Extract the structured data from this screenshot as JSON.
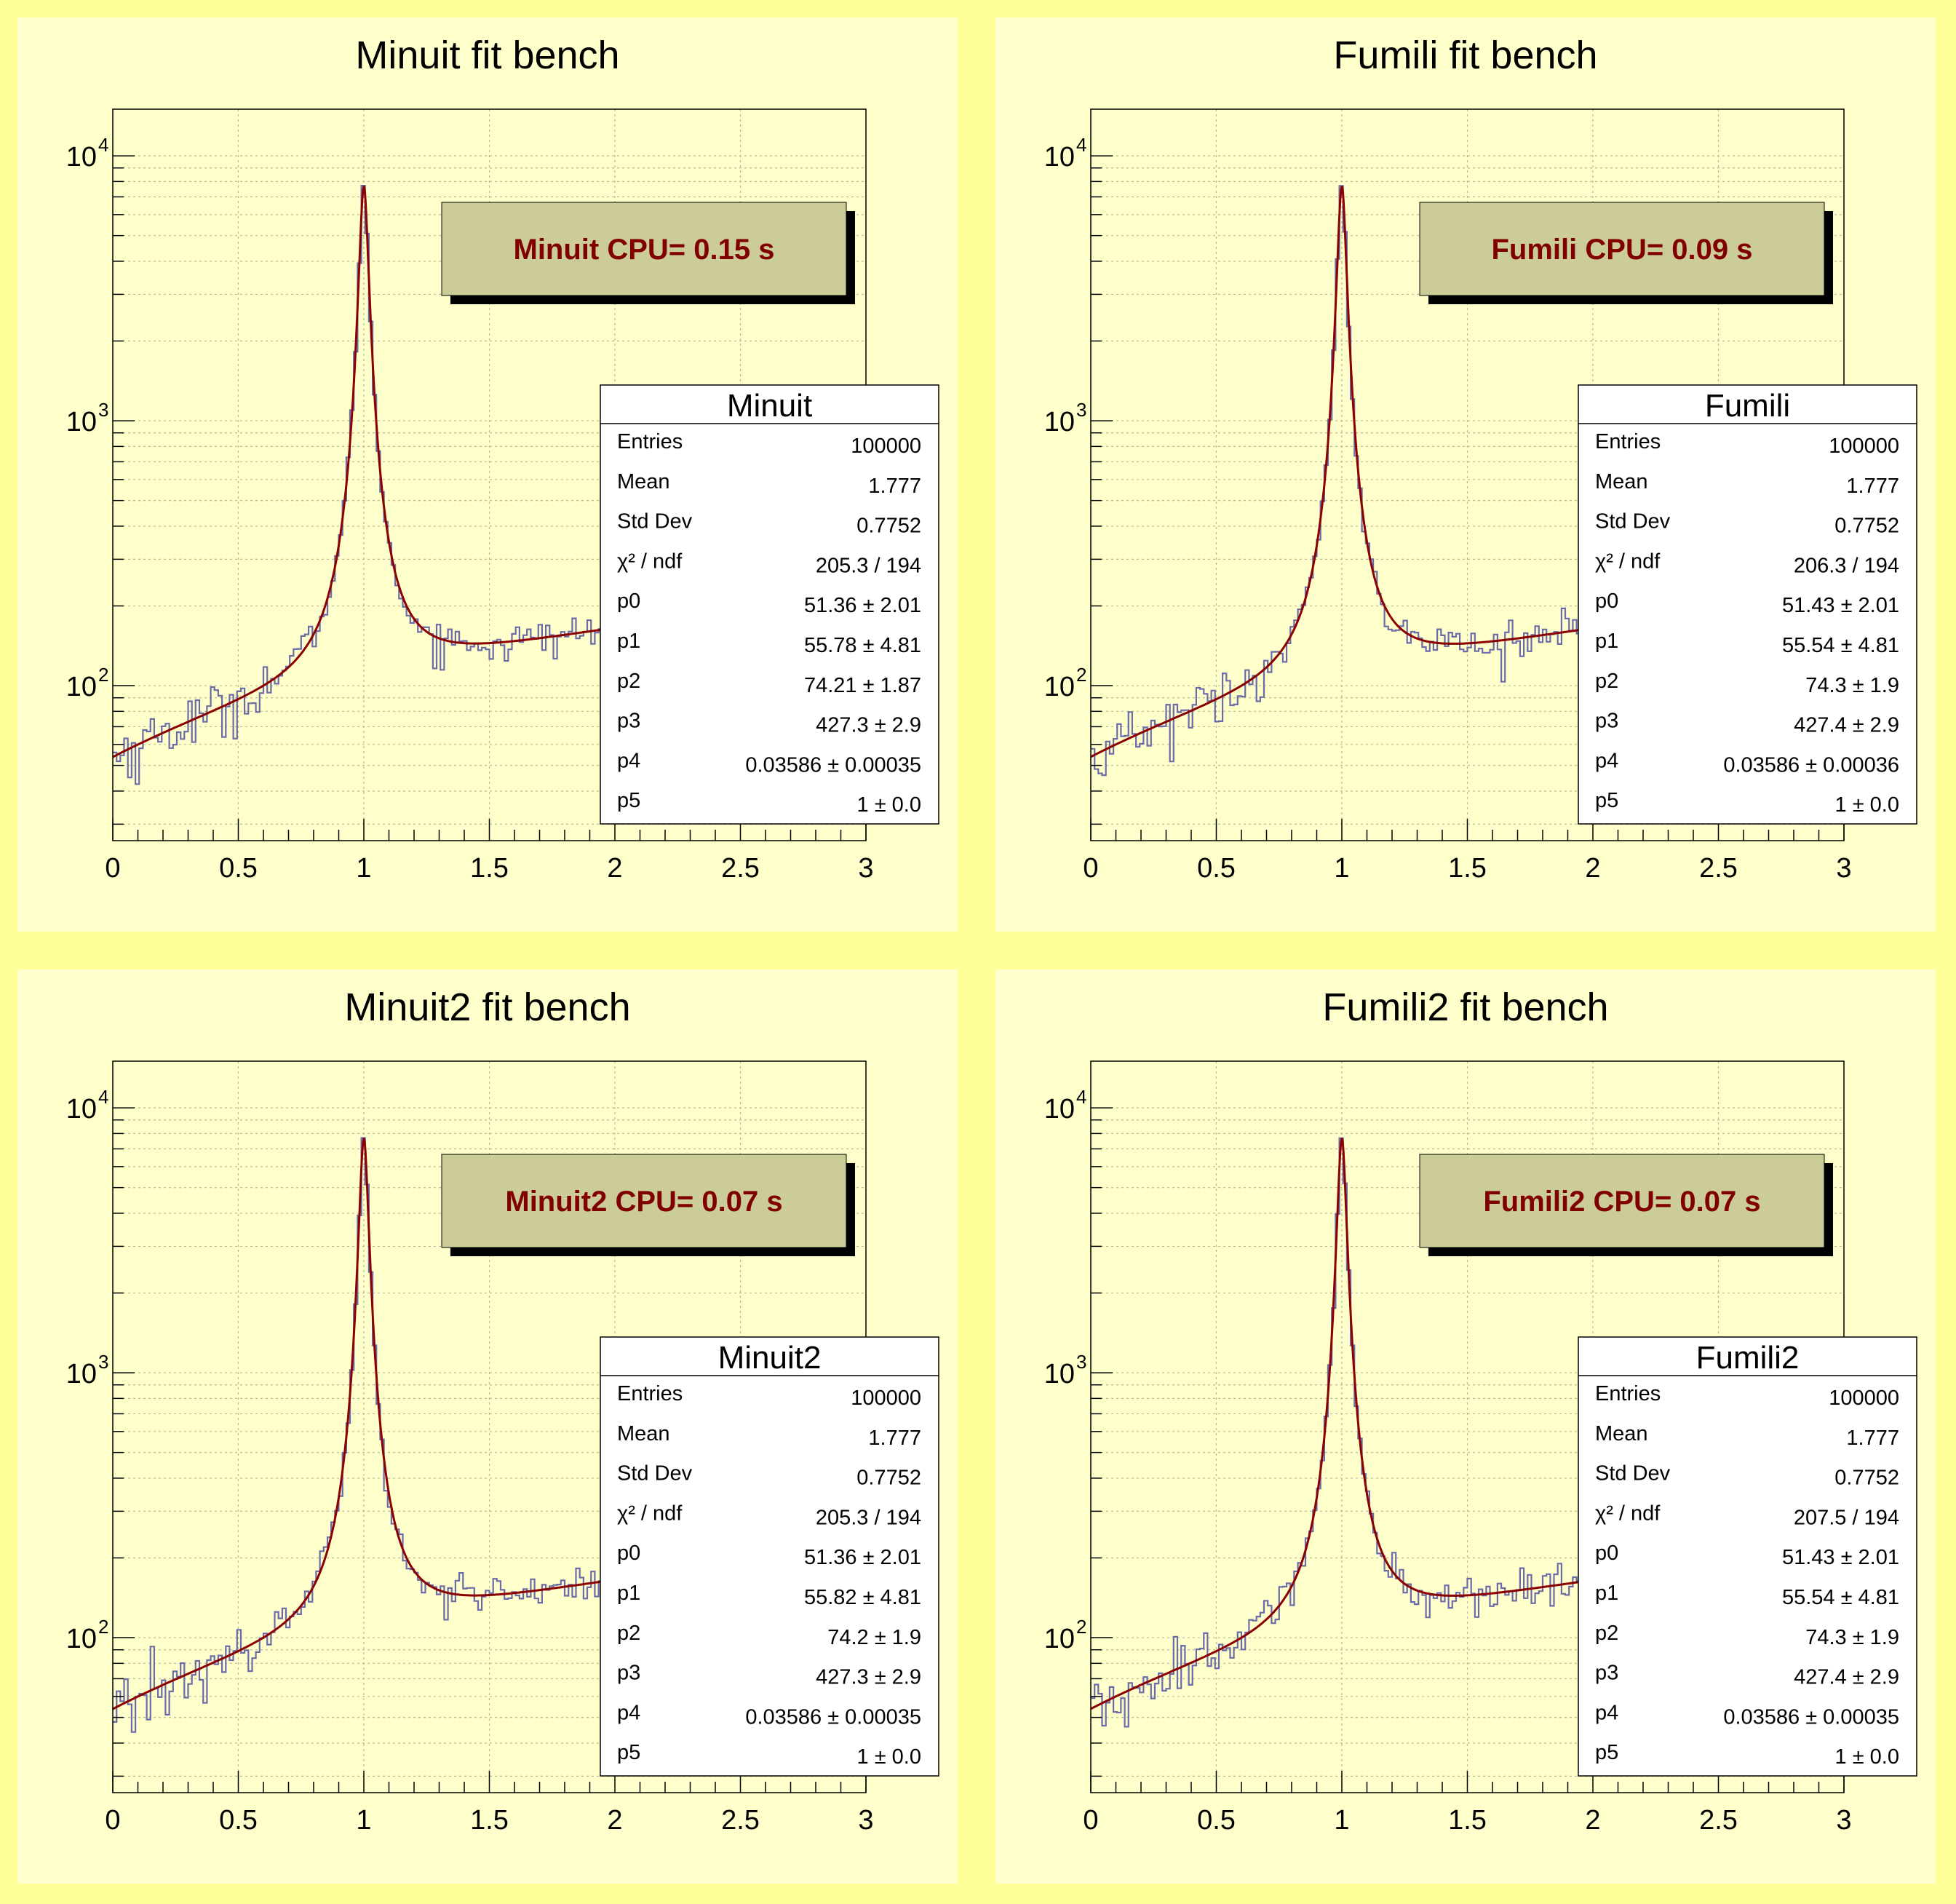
{
  "colors": {
    "canvas": "#ffff99",
    "pad": "#ffffcc",
    "histogram": "#6b6ba8",
    "fit": "#8b0000",
    "cpu_box": "#cccc99",
    "cpu_text": "#800000"
  },
  "chart_data": [
    {
      "type": "histogram+fit",
      "title": "Minuit fit bench",
      "cpu_label": "Minuit CPU= 0.15 s",
      "xlim": [
        0,
        3
      ],
      "ylim": [
        26,
        15000
      ],
      "ylog": true,
      "grid": true,
      "x_ticks": [
        "0",
        "0.5",
        "1",
        "1.5",
        "2",
        "2.5",
        "3"
      ],
      "y_ticks": [
        {
          "base": "10",
          "exp": "2"
        },
        {
          "base": "10",
          "exp": "3"
        },
        {
          "base": "10",
          "exp": "4"
        }
      ],
      "stats": {
        "name": "Minuit",
        "rows": [
          {
            "label": "Entries",
            "value": "100000"
          },
          {
            "label": "Mean",
            "value": "1.777"
          },
          {
            "label": "Std Dev",
            "value": "0.7752"
          },
          {
            "label": "χ² / ndf",
            "value": "205.3 / 194"
          },
          {
            "label": "p0",
            "value": "51.36 ± 2.01"
          },
          {
            "label": "p1",
            "value": "55.78 ± 4.81"
          },
          {
            "label": "p2",
            "value": "74.21 ± 1.87"
          },
          {
            "label": "p3",
            "value": "427.3 ± 2.9"
          },
          {
            "label": "p4",
            "value": "0.03586 ± 0.00035"
          },
          {
            "label": "p5",
            "value": "1 ± 0.0"
          }
        ]
      },
      "fit": {
        "p0": 51.36,
        "p1": 55.78,
        "p2": 74.21,
        "p3": 427.3,
        "p4": 0.03586,
        "p5": 1.0
      }
    },
    {
      "type": "histogram+fit",
      "title": "Fumili fit bench",
      "cpu_label": "Fumili CPU= 0.09 s",
      "xlim": [
        0,
        3
      ],
      "ylim": [
        26,
        15000
      ],
      "ylog": true,
      "grid": true,
      "x_ticks": [
        "0",
        "0.5",
        "1",
        "1.5",
        "2",
        "2.5",
        "3"
      ],
      "y_ticks": [
        {
          "base": "10",
          "exp": "2"
        },
        {
          "base": "10",
          "exp": "3"
        },
        {
          "base": "10",
          "exp": "4"
        }
      ],
      "stats": {
        "name": "Fumili",
        "rows": [
          {
            "label": "Entries",
            "value": "100000"
          },
          {
            "label": "Mean",
            "value": "1.777"
          },
          {
            "label": "Std Dev",
            "value": "0.7752"
          },
          {
            "label": "χ² / ndf",
            "value": "206.3 / 194"
          },
          {
            "label": "p0",
            "value": "51.43 ± 2.01"
          },
          {
            "label": "p1",
            "value": "55.54 ± 4.81"
          },
          {
            "label": "p2",
            "value": "74.3 ± 1.9"
          },
          {
            "label": "p3",
            "value": "427.4 ± 2.9"
          },
          {
            "label": "p4",
            "value": "0.03586 ± 0.00036"
          },
          {
            "label": "p5",
            "value": "1 ± 0.0"
          }
        ]
      },
      "fit": {
        "p0": 51.43,
        "p1": 55.54,
        "p2": 74.3,
        "p3": 427.4,
        "p4": 0.03586,
        "p5": 1.0
      }
    },
    {
      "type": "histogram+fit",
      "title": "Minuit2 fit bench",
      "cpu_label": "Minuit2 CPU= 0.07 s",
      "xlim": [
        0,
        3
      ],
      "ylim": [
        26,
        15000
      ],
      "ylog": true,
      "grid": true,
      "x_ticks": [
        "0",
        "0.5",
        "1",
        "1.5",
        "2",
        "2.5",
        "3"
      ],
      "y_ticks": [
        {
          "base": "10",
          "exp": "2"
        },
        {
          "base": "10",
          "exp": "3"
        },
        {
          "base": "10",
          "exp": "4"
        }
      ],
      "stats": {
        "name": "Minuit2",
        "rows": [
          {
            "label": "Entries",
            "value": "100000"
          },
          {
            "label": "Mean",
            "value": "1.777"
          },
          {
            "label": "Std Dev",
            "value": "0.7752"
          },
          {
            "label": "χ² / ndf",
            "value": "205.3 / 194"
          },
          {
            "label": "p0",
            "value": "51.36 ± 2.01"
          },
          {
            "label": "p1",
            "value": "55.82 ± 4.81"
          },
          {
            "label": "p2",
            "value": "74.2 ± 1.9"
          },
          {
            "label": "p3",
            "value": "427.3 ± 2.9"
          },
          {
            "label": "p4",
            "value": "0.03586 ± 0.00035"
          },
          {
            "label": "p5",
            "value": "1 ± 0.0"
          }
        ]
      },
      "fit": {
        "p0": 51.36,
        "p1": 55.82,
        "p2": 74.2,
        "p3": 427.3,
        "p4": 0.03586,
        "p5": 1.0
      }
    },
    {
      "type": "histogram+fit",
      "title": "Fumili2 fit bench",
      "cpu_label": "Fumili2 CPU= 0.07 s",
      "xlim": [
        0,
        3
      ],
      "ylim": [
        26,
        15000
      ],
      "ylog": true,
      "grid": true,
      "x_ticks": [
        "0",
        "0.5",
        "1",
        "1.5",
        "2",
        "2.5",
        "3"
      ],
      "y_ticks": [
        {
          "base": "10",
          "exp": "2"
        },
        {
          "base": "10",
          "exp": "3"
        },
        {
          "base": "10",
          "exp": "4"
        }
      ],
      "stats": {
        "name": "Fumili2",
        "rows": [
          {
            "label": "Entries",
            "value": "100000"
          },
          {
            "label": "Mean",
            "value": "1.777"
          },
          {
            "label": "Std Dev",
            "value": "0.7752"
          },
          {
            "label": "χ² / ndf",
            "value": "207.5 / 194"
          },
          {
            "label": "p0",
            "value": "51.43 ± 2.01"
          },
          {
            "label": "p1",
            "value": "55.54 ± 4.81"
          },
          {
            "label": "p2",
            "value": "74.3 ± 1.9"
          },
          {
            "label": "p3",
            "value": "427.4 ± 2.9"
          },
          {
            "label": "p4",
            "value": "0.03586 ± 0.00035"
          },
          {
            "label": "p5",
            "value": "1 ± 0.0"
          }
        ]
      },
      "fit": {
        "p0": 51.43,
        "p1": 55.54,
        "p2": 74.3,
        "p3": 427.4,
        "p4": 0.03586,
        "p5": 1.0
      }
    }
  ]
}
